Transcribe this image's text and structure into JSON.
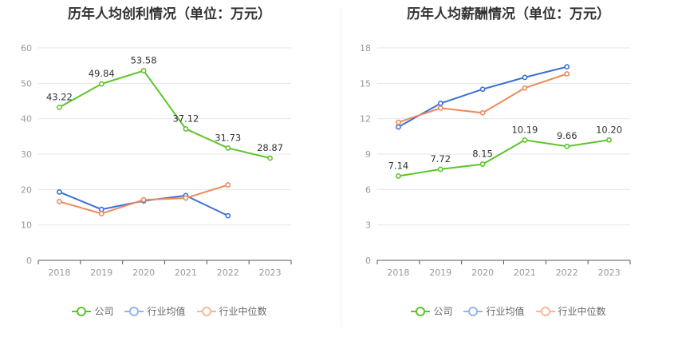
{
  "chart_data": [
    {
      "type": "line",
      "title": "历年人均创利情况（单位：万元）",
      "categories": [
        "2018",
        "2019",
        "2020",
        "2021",
        "2022",
        "2023"
      ],
      "ylim": [
        0,
        60
      ],
      "yticks": [
        0,
        10,
        20,
        30,
        40,
        50,
        60
      ],
      "grid": true,
      "legend_position": "bottom",
      "series": [
        {
          "name": "公司",
          "color": "#5ec42b",
          "labels": true,
          "values": [
            43.22,
            49.84,
            53.58,
            37.12,
            31.73,
            28.87
          ]
        },
        {
          "name": "行业均值",
          "color": "#3c6fd6",
          "labels": false,
          "values": [
            19.3,
            14.4,
            16.8,
            18.3,
            12.6,
            null
          ]
        },
        {
          "name": "行业中位数",
          "color": "#ee8a5a",
          "labels": false,
          "values": [
            16.6,
            13.2,
            17.1,
            17.6,
            21.3,
            null
          ]
        }
      ]
    },
    {
      "type": "line",
      "title": "历年人均薪酬情况（单位：万元）",
      "categories": [
        "2018",
        "2019",
        "2020",
        "2021",
        "2022",
        "2023"
      ],
      "ylim": [
        0,
        18
      ],
      "yticks": [
        0,
        3,
        6,
        9,
        12,
        15,
        18
      ],
      "grid": true,
      "legend_position": "bottom",
      "series": [
        {
          "name": "公司",
          "color": "#5ec42b",
          "labels": true,
          "values": [
            7.14,
            7.72,
            8.15,
            10.19,
            9.66,
            10.2
          ]
        },
        {
          "name": "行业均值",
          "color": "#3c6fd6",
          "labels": false,
          "values": [
            11.3,
            13.3,
            14.5,
            15.5,
            16.4,
            null
          ]
        },
        {
          "name": "行业中位数",
          "color": "#ee8a5a",
          "labels": false,
          "values": [
            11.7,
            12.9,
            12.5,
            14.6,
            15.8,
            null
          ]
        }
      ]
    }
  ],
  "legend": {
    "company": "公司",
    "industry_avg": "行业均值",
    "industry_median": "行业中位数",
    "company_color": "#5ec42b",
    "industry_avg_color": "#96b4ec",
    "industry_median_color": "#f6b79a"
  },
  "value_labels": [
    [
      "43.22",
      "49.84",
      "53.58",
      "37.12",
      "31.73",
      "28.87"
    ],
    [
      "7.14",
      "7.72",
      "8.15",
      "10.19",
      "9.66",
      "10.20"
    ]
  ]
}
